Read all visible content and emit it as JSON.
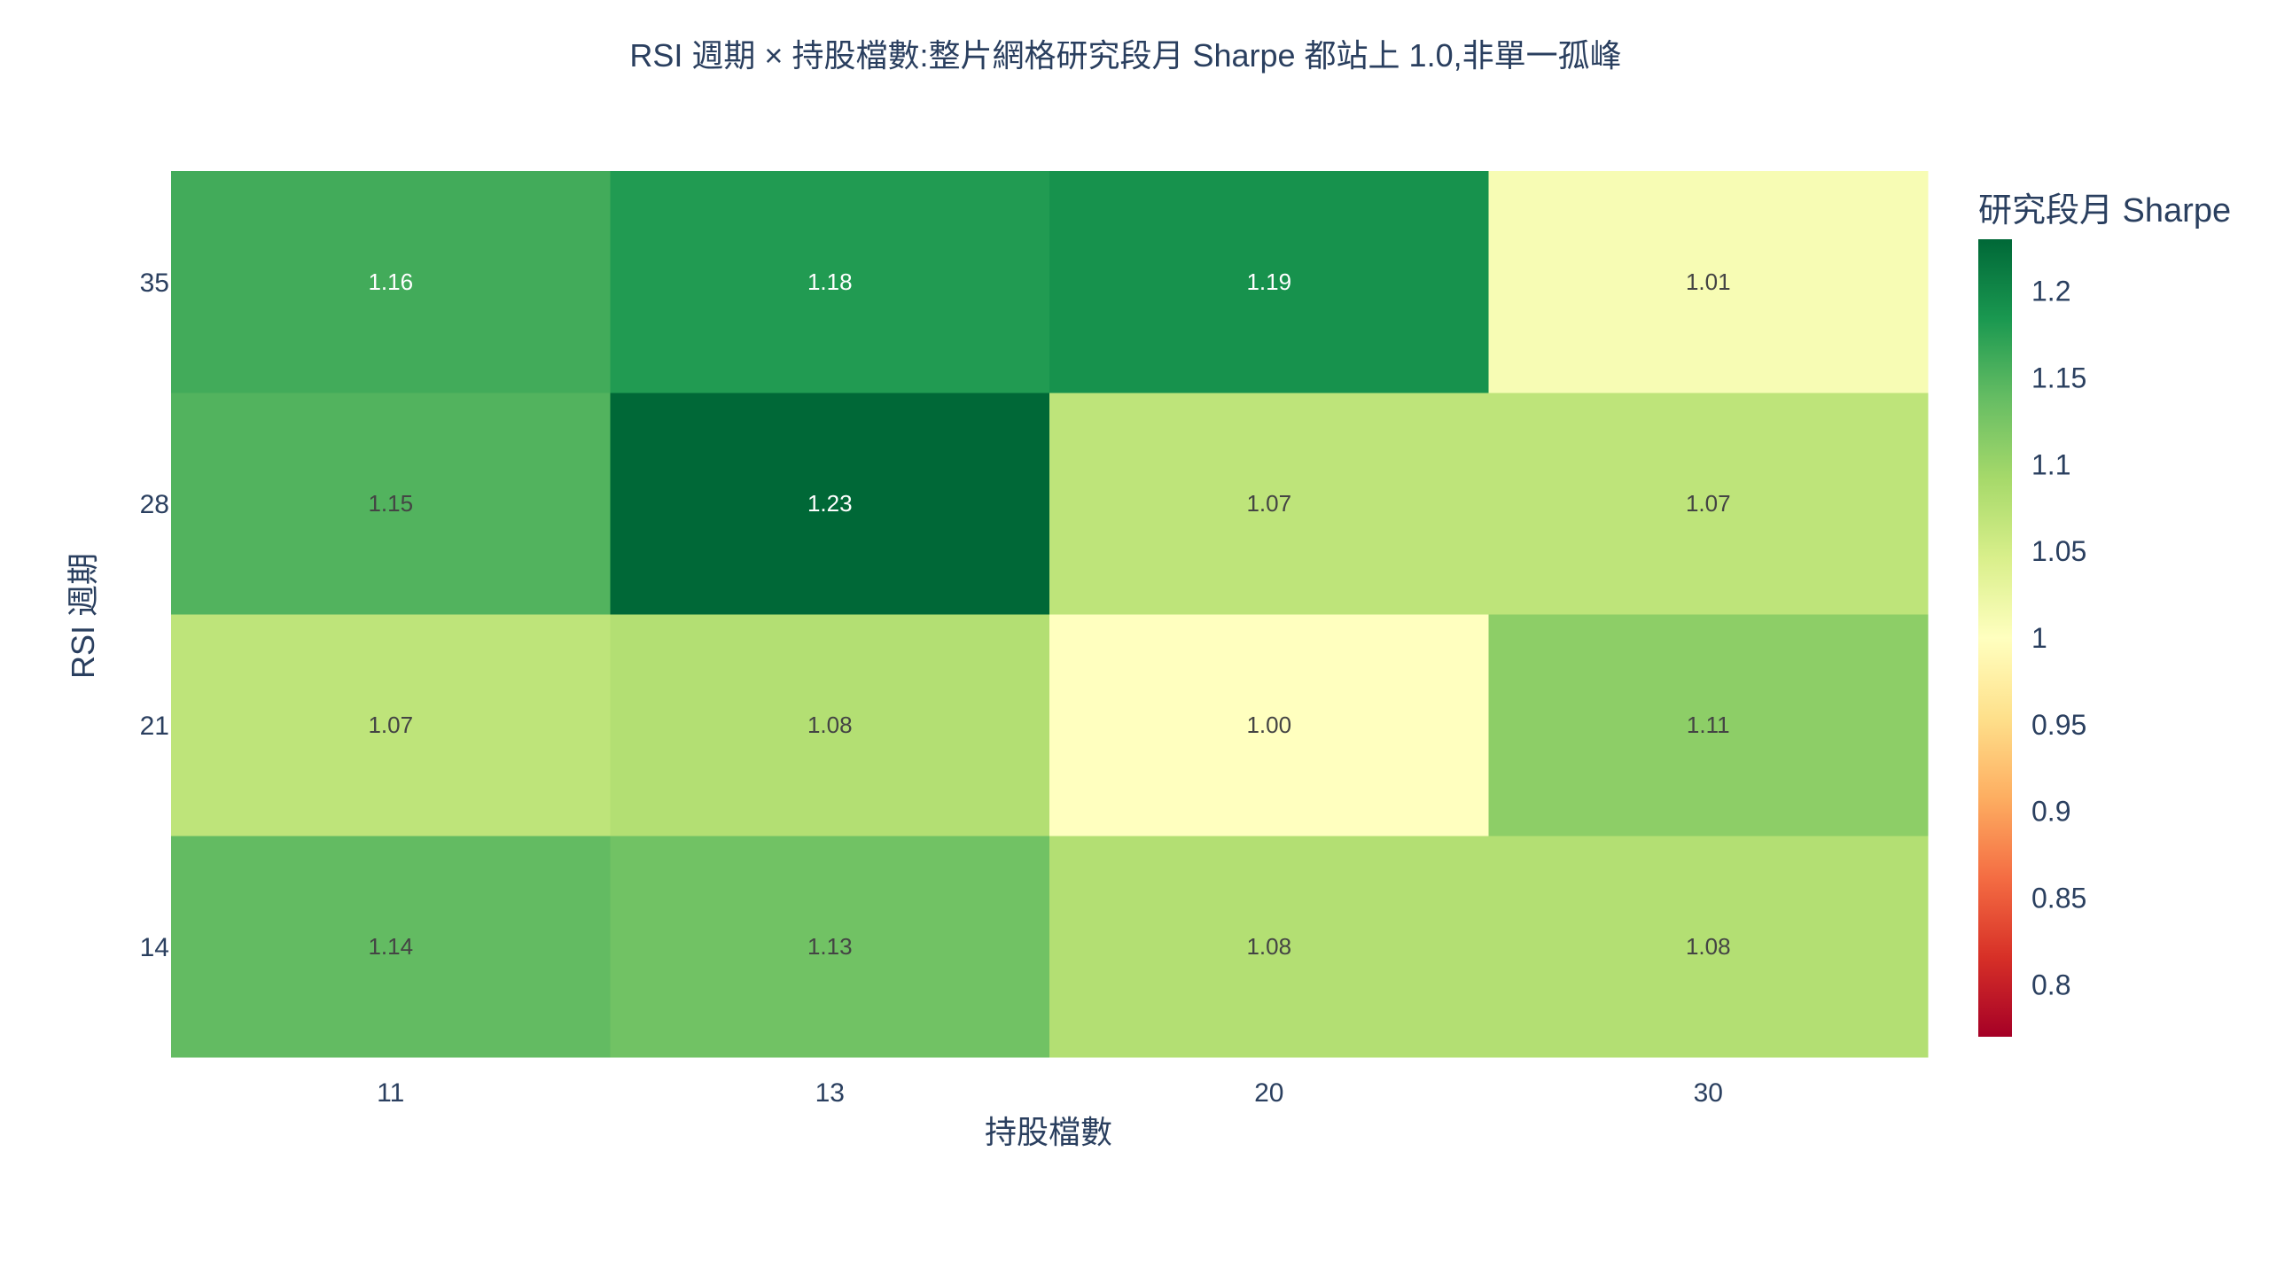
{
  "chart_data": {
    "type": "heatmap",
    "title": "RSI 週期 × 持股檔數:整片網格研究段月 Sharpe 都站上 1.0,非單一孤峰",
    "xlabel": "持股檔數",
    "ylabel": "RSI 週期",
    "x": [
      "11",
      "13",
      "20",
      "30"
    ],
    "y": [
      "14",
      "21",
      "28",
      "35"
    ],
    "z": [
      [
        1.14,
        1.13,
        1.08,
        1.08
      ],
      [
        1.07,
        1.08,
        1.0,
        1.11
      ],
      [
        1.15,
        1.23,
        1.07,
        1.07
      ],
      [
        1.16,
        1.18,
        1.19,
        1.01
      ]
    ],
    "text": [
      [
        "1.14",
        "1.13",
        "1.08",
        "1.08"
      ],
      [
        "1.07",
        "1.08",
        "1.00",
        "1.11"
      ],
      [
        "1.15",
        "1.23",
        "1.07",
        "1.07"
      ],
      [
        "1.16",
        "1.18",
        "1.19",
        "1.01"
      ]
    ],
    "colorscale": "RdYlGn",
    "colorbar": {
      "title": "研究段月 Sharpe",
      "range": [
        0.77,
        1.23
      ],
      "tickvals": [
        0.8,
        0.85,
        0.9,
        0.95,
        1.0,
        1.05,
        1.1,
        1.15,
        1.2
      ],
      "ticktext": [
        "0.8",
        "0.85",
        "0.9",
        "0.95",
        "1",
        "1.05",
        "1.1",
        "1.15",
        "1.2"
      ]
    }
  }
}
